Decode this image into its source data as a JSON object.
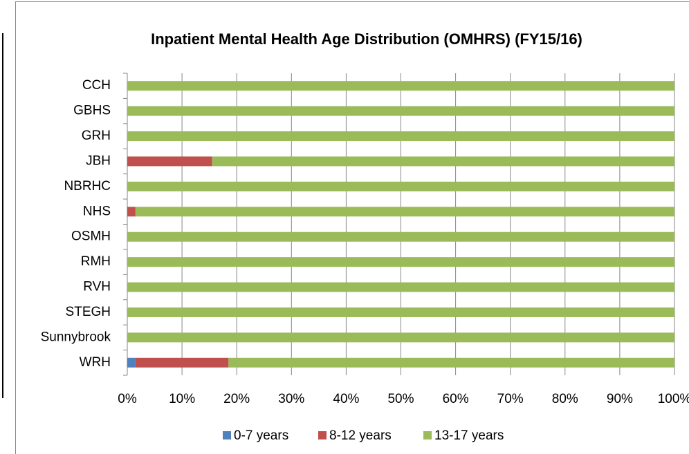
{
  "chart_data": {
    "type": "bar",
    "orientation": "horizontal",
    "stacked": true,
    "title": "Inpatient Mental Health Age Distribution (OMHRS) (FY15/16)",
    "categories": [
      "CCH",
      "GBHS",
      "GRH",
      "JBH",
      "NBRHC",
      "NHS",
      "OSMH",
      "RMH",
      "RVH",
      "STEGH",
      "Sunnybrook",
      "WRH"
    ],
    "series": [
      {
        "name": "0-7 years",
        "color": "#4f81bd",
        "values": [
          0,
          0,
          0,
          0,
          0,
          0,
          0,
          0,
          0,
          0,
          0,
          1.5
        ]
      },
      {
        "name": "8-12 years",
        "color": "#c0504d",
        "values": [
          0,
          0,
          0,
          15.5,
          0,
          1.5,
          0,
          0,
          0,
          0,
          0,
          17
        ]
      },
      {
        "name": "13-17 years",
        "color": "#9bbb59",
        "values": [
          100,
          100,
          100,
          84.5,
          100,
          98.5,
          100,
          100,
          100,
          100,
          100,
          81.5
        ]
      }
    ],
    "xlim": [
      0,
      100
    ],
    "xticks": [
      {
        "value": 0,
        "label": "0%"
      },
      {
        "value": 10,
        "label": "10%"
      },
      {
        "value": 20,
        "label": "20%"
      },
      {
        "value": 30,
        "label": "30%"
      },
      {
        "value": 40,
        "label": "40%"
      },
      {
        "value": 50,
        "label": "50%"
      },
      {
        "value": 60,
        "label": "60%"
      },
      {
        "value": 70,
        "label": "70%"
      },
      {
        "value": 80,
        "label": "80%"
      },
      {
        "value": 90,
        "label": "90%"
      },
      {
        "value": 100,
        "label": "100%"
      }
    ],
    "grid": true,
    "legend": "bottom"
  }
}
